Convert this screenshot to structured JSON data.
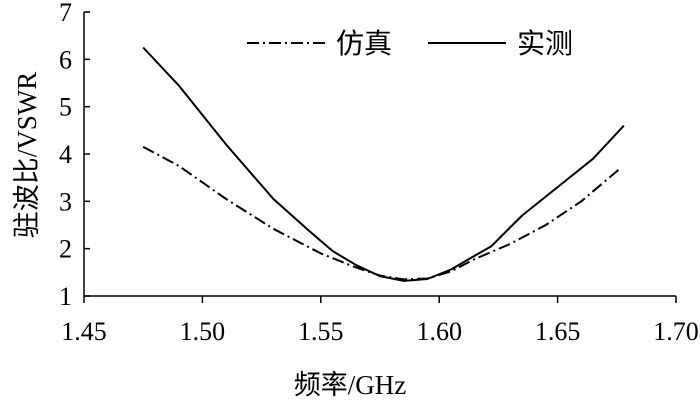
{
  "chart_data": {
    "type": "line",
    "xlabel": "频率/GHz",
    "ylabel": "驻波比/VSWR",
    "xlim": [
      1.45,
      1.7
    ],
    "ylim": [
      1,
      7
    ],
    "xticks": [
      "1.45",
      "1.50",
      "1.55",
      "1.60",
      "1.65",
      "1.70"
    ],
    "yticks": [
      "1",
      "2",
      "3",
      "4",
      "5",
      "6",
      "7"
    ],
    "grid": false,
    "legend_position": "top-right",
    "series": [
      {
        "name": "仿真",
        "style": "dash-dot",
        "x": [
          1.475,
          1.49,
          1.51,
          1.53,
          1.55,
          1.565,
          1.575,
          1.585,
          1.595,
          1.605,
          1.615,
          1.63,
          1.645,
          1.66,
          1.677
        ],
        "y": [
          4.15,
          3.75,
          3.05,
          2.42,
          1.9,
          1.6,
          1.43,
          1.35,
          1.37,
          1.52,
          1.78,
          2.1,
          2.5,
          3.0,
          3.72
        ]
      },
      {
        "name": "实测",
        "style": "solid",
        "x": [
          1.475,
          1.49,
          1.51,
          1.53,
          1.545,
          1.555,
          1.565,
          1.575,
          1.585,
          1.595,
          1.605,
          1.615,
          1.622,
          1.635,
          1.65,
          1.665,
          1.678
        ],
        "y": [
          6.25,
          5.45,
          4.2,
          3.05,
          2.38,
          1.95,
          1.65,
          1.42,
          1.32,
          1.36,
          1.56,
          1.85,
          2.05,
          2.7,
          3.3,
          3.9,
          4.6
        ]
      }
    ]
  }
}
